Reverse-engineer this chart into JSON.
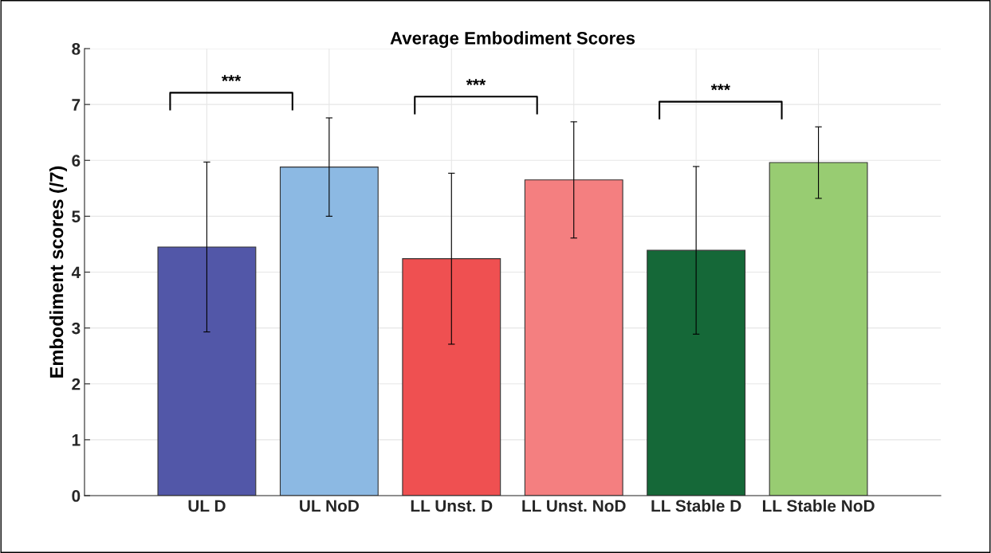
{
  "chart_data": {
    "type": "bar",
    "title": "Average Embodiment Scores",
    "ylabel": "Embodiment scores (/7)",
    "categories": [
      "UL D",
      "UL NoD",
      "LL Unst. D",
      "LL Unst. NoD",
      "LL Stable D",
      "LL Stable NoD"
    ],
    "values": [
      4.45,
      5.88,
      4.24,
      5.65,
      4.39,
      5.96
    ],
    "errors": [
      1.52,
      0.88,
      1.53,
      1.04,
      1.5,
      0.64
    ],
    "colors": [
      "#5257a8",
      "#8cb9e3",
      "#ef5051",
      "#f47f80",
      "#156838",
      "#98cc72"
    ],
    "ylim": [
      0,
      8
    ],
    "yticks": [
      0,
      1,
      2,
      3,
      4,
      5,
      6,
      7,
      8
    ],
    "grid": true,
    "annotations": [
      "***",
      "***",
      "***"
    ]
  }
}
